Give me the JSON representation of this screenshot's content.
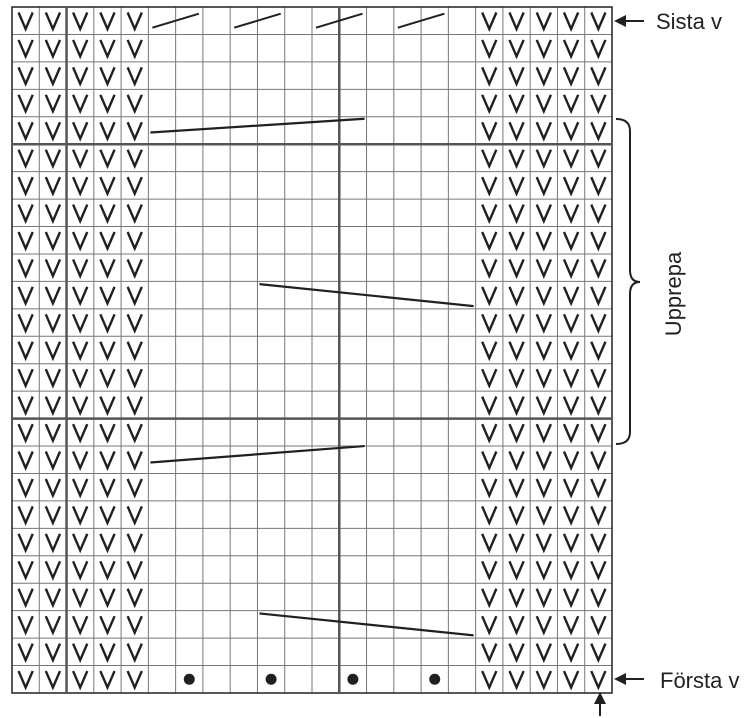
{
  "labels": {
    "last_row": "Sista v",
    "first_row": "Första v",
    "repeat": "Upprepa"
  },
  "grid": {
    "columns": 22,
    "rows": 25,
    "left_v_columns": 5,
    "right_v_columns": 5,
    "repeat_start_row_from_bottom": 10,
    "repeat_end_row_from_bottom": 20
  },
  "colors": {
    "line": "#231f20",
    "grid": "#231f20",
    "background": "#ffffff"
  },
  "symbols": {
    "v_stitch": "V",
    "dot": "dot-symbol",
    "slash": "slash-symbol"
  }
}
